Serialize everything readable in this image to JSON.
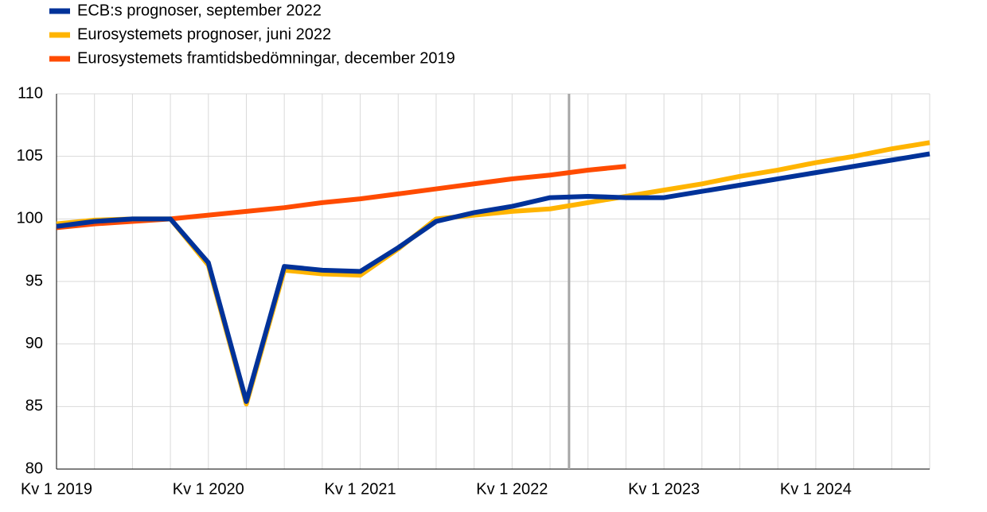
{
  "chart_data": {
    "type": "line",
    "categories": [
      "Kv 1 2019",
      null,
      null,
      null,
      "Kv 1 2020",
      null,
      null,
      null,
      "Kv 1 2021",
      null,
      null,
      null,
      "Kv 1 2022",
      null,
      null,
      null,
      "Kv 1 2023",
      null,
      null,
      null,
      "Kv 1 2024",
      null,
      null,
      null
    ],
    "series": [
      {
        "name": "ECB:s prognoser, september 2022",
        "color": "#003299",
        "values": [
          99.4,
          99.8,
          100.0,
          100.0,
          96.5,
          85.4,
          96.2,
          95.9,
          95.8,
          97.7,
          99.8,
          100.5,
          101.0,
          101.7,
          101.8,
          101.7,
          101.7,
          102.2,
          102.7,
          103.2,
          103.7,
          104.2,
          104.7,
          105.2
        ]
      },
      {
        "name": "Eurosystemets prognoser, juni 2022",
        "color": "#ffb400",
        "values": [
          99.6,
          99.9,
          100.0,
          100.0,
          96.3,
          85.2,
          95.9,
          95.6,
          95.5,
          97.6,
          100.0,
          100.3,
          100.6,
          100.8,
          101.3,
          101.8,
          102.3,
          102.8,
          103.4,
          103.9,
          104.5,
          105.0,
          105.6,
          106.1
        ]
      },
      {
        "name": "Eurosystemets framtidsbedömningar, december 2019",
        "color": "#ff4b00",
        "values": [
          99.3,
          99.6,
          99.8,
          100.0,
          100.3,
          100.6,
          100.9,
          101.3,
          101.6,
          102.0,
          102.4,
          102.8,
          103.2,
          103.5,
          103.9,
          104.2,
          null,
          null,
          null,
          null,
          null,
          null,
          null,
          null
        ]
      }
    ],
    "ylim": [
      80,
      110
    ],
    "yticks": [
      80,
      85,
      90,
      95,
      100,
      105,
      110
    ],
    "grid": true,
    "vertical_marker": 13.5,
    "legend": "top-left"
  }
}
